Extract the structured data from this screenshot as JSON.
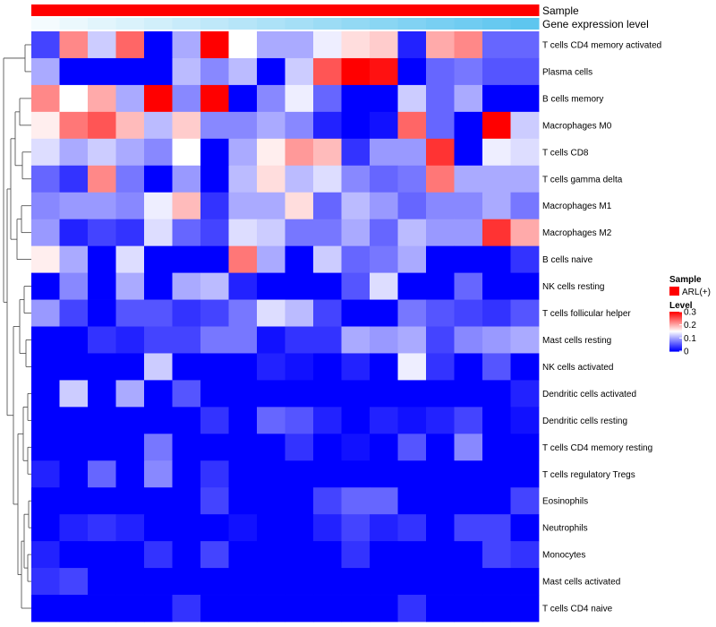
{
  "chart_data": {
    "type": "heatmap",
    "title": "",
    "xlabel": "",
    "ylabel": "",
    "n_columns": 18,
    "annotations": [
      {
        "name": "Sample",
        "kind": "categorical",
        "color": "#ff0000"
      },
      {
        "name": "Gene expression level",
        "kind": "gradient",
        "color_start": "#f4fbfe",
        "color_end": "#5ec6ef"
      }
    ],
    "rows": [
      "T cells CD4 memory activated",
      "Plasma cells",
      "B cells memory",
      "Macrophages M0",
      "T cells CD8",
      "T cells gamma delta",
      "Macrophages M1",
      "Macrophages M2",
      "B cells naive",
      "NK cells resting",
      "T cells follicular helper",
      "Mast cells resting",
      "NK cells activated",
      "Dendritic cells activated",
      "Dendritic cells resting",
      "T cells CD4 memory resting",
      "T cells regulatory  Tregs",
      "Eosinophils",
      "Neutrophils",
      "Monocytes",
      "Mast cells activated",
      "T cells CD4 naive"
    ],
    "values": [
      [
        0.04,
        0.22,
        0.12,
        0.24,
        0.0,
        0.1,
        0.3,
        0.15,
        0.1,
        0.1,
        0.14,
        0.17,
        0.18,
        0.02,
        0.2,
        0.22,
        0.06,
        0.06
      ],
      [
        0.1,
        0.0,
        0.0,
        0.0,
        0.0,
        0.11,
        0.08,
        0.11,
        0.0,
        0.12,
        0.25,
        0.3,
        0.29,
        0.0,
        0.06,
        0.07,
        0.05,
        0.05
      ],
      [
        0.22,
        0.15,
        0.2,
        0.1,
        0.3,
        0.08,
        0.3,
        0.0,
        0.08,
        0.14,
        0.06,
        0.0,
        0.0,
        0.12,
        0.06,
        0.1,
        0.0,
        0.0
      ],
      [
        0.16,
        0.23,
        0.25,
        0.19,
        0.11,
        0.18,
        0.08,
        0.08,
        0.1,
        0.08,
        0.02,
        0.0,
        0.01,
        0.24,
        0.06,
        0.0,
        0.3,
        0.12
      ],
      [
        0.13,
        0.1,
        0.12,
        0.1,
        0.08,
        0.15,
        0.0,
        0.1,
        0.16,
        0.21,
        0.19,
        0.03,
        0.09,
        0.09,
        0.27,
        0.0,
        0.14,
        0.13
      ],
      [
        0.06,
        0.03,
        0.22,
        0.07,
        0.0,
        0.09,
        0.0,
        0.11,
        0.17,
        0.11,
        0.13,
        0.08,
        0.06,
        0.07,
        0.23,
        0.1,
        0.1,
        0.1
      ],
      [
        0.08,
        0.09,
        0.09,
        0.08,
        0.14,
        0.19,
        0.03,
        0.1,
        0.1,
        0.17,
        0.06,
        0.11,
        0.09,
        0.06,
        0.08,
        0.08,
        0.1,
        0.07
      ],
      [
        0.09,
        0.02,
        0.04,
        0.03,
        0.13,
        0.06,
        0.04,
        0.13,
        0.12,
        0.07,
        0.07,
        0.1,
        0.06,
        0.11,
        0.09,
        0.09,
        0.27,
        0.2
      ],
      [
        0.16,
        0.1,
        0.0,
        0.13,
        0.0,
        0.0,
        0.0,
        0.23,
        0.1,
        0.0,
        0.12,
        0.06,
        0.07,
        0.1,
        0.0,
        0.0,
        0.0,
        0.03
      ],
      [
        0.0,
        0.08,
        0.0,
        0.1,
        0.0,
        0.1,
        0.11,
        0.02,
        0.0,
        0.0,
        0.0,
        0.05,
        0.13,
        0.0,
        0.0,
        0.06,
        0.0,
        0.0
      ],
      [
        0.09,
        0.04,
        0.0,
        0.05,
        0.05,
        0.03,
        0.04,
        0.07,
        0.13,
        0.11,
        0.04,
        0.0,
        0.0,
        0.07,
        0.05,
        0.04,
        0.03,
        0.05
      ],
      [
        0.0,
        0.0,
        0.03,
        0.02,
        0.04,
        0.04,
        0.07,
        0.07,
        0.01,
        0.03,
        0.03,
        0.1,
        0.09,
        0.1,
        0.04,
        0.08,
        0.09,
        0.1
      ],
      [
        0.0,
        0.0,
        0.0,
        0.0,
        0.12,
        0.0,
        0.0,
        0.0,
        0.02,
        0.01,
        0.0,
        0.02,
        0.0,
        0.14,
        0.03,
        0.0,
        0.05,
        0.0
      ],
      [
        0.0,
        0.12,
        0.0,
        0.1,
        0.0,
        0.05,
        0.0,
        0.0,
        0.0,
        0.0,
        0.0,
        0.0,
        0.0,
        0.0,
        0.0,
        0.0,
        0.0,
        0.02
      ],
      [
        0.0,
        0.0,
        0.0,
        0.0,
        0.0,
        0.0,
        0.03,
        0.0,
        0.06,
        0.05,
        0.02,
        0.0,
        0.02,
        0.01,
        0.02,
        0.04,
        0.0,
        0.01
      ],
      [
        0.0,
        0.0,
        0.0,
        0.0,
        0.07,
        0.0,
        0.0,
        0.0,
        0.0,
        0.03,
        0.0,
        0.01,
        0.0,
        0.05,
        0.0,
        0.08,
        0.0,
        0.0
      ],
      [
        0.02,
        0.0,
        0.06,
        0.0,
        0.08,
        0.0,
        0.03,
        0.0,
        0.0,
        0.0,
        0.0,
        0.0,
        0.0,
        0.0,
        0.0,
        0.0,
        0.0,
        0.0
      ],
      [
        0.0,
        0.0,
        0.0,
        0.0,
        0.0,
        0.0,
        0.04,
        0.0,
        0.0,
        0.0,
        0.04,
        0.06,
        0.06,
        0.0,
        0.0,
        0.0,
        0.0,
        0.04
      ],
      [
        0.0,
        0.02,
        0.03,
        0.02,
        0.0,
        0.0,
        0.0,
        0.01,
        0.0,
        0.0,
        0.02,
        0.04,
        0.02,
        0.03,
        0.0,
        0.04,
        0.04,
        0.0
      ],
      [
        0.02,
        0.0,
        0.0,
        0.0,
        0.03,
        0.0,
        0.04,
        0.0,
        0.0,
        0.0,
        0.0,
        0.03,
        0.0,
        0.0,
        0.0,
        0.0,
        0.04,
        0.03
      ],
      [
        0.03,
        0.04,
        0.0,
        0.0,
        0.0,
        0.0,
        0.0,
        0.0,
        0.0,
        0.0,
        0.0,
        0.0,
        0.0,
        0.0,
        0.0,
        0.0,
        0.0,
        0.0
      ],
      [
        0.0,
        0.0,
        0.0,
        0.0,
        0.0,
        0.03,
        0.0,
        0.0,
        0.0,
        0.0,
        0.0,
        0.0,
        0.0,
        0.03,
        0.0,
        0.0,
        0.0,
        0.0
      ]
    ],
    "color_scale": {
      "min": 0,
      "mid": 0.15,
      "max": 0.3,
      "low": "#0000ff",
      "mid_color": "#ffffff",
      "high": "#ff0000"
    },
    "legend": {
      "sample_title": "Sample",
      "sample_entry": "ARL(+)",
      "level_title": "Level",
      "ticks": [
        {
          "label": "0.3",
          "value": 0.3
        },
        {
          "label": "0.2",
          "value": 0.2
        },
        {
          "label": "0.1",
          "value": 0.1
        },
        {
          "label": "0",
          "value": 0
        }
      ],
      "placement": "right"
    }
  }
}
